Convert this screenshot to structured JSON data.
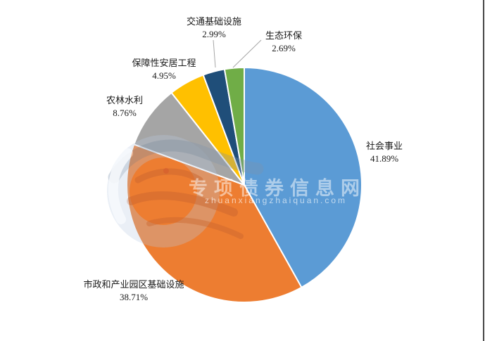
{
  "chart_data": {
    "type": "pie",
    "title": "",
    "legend": "none",
    "start_angle_deg": 0,
    "direction": "clockwise",
    "data_labels": "category name and percent, outside slices",
    "slices": [
      {
        "name": "社会事业",
        "value": 41.89,
        "pct_label": "41.89%",
        "color": "#5B9BD5"
      },
      {
        "name": "市政和产业园区基础设施",
        "value": 38.71,
        "pct_label": "38.71%",
        "color": "#ED7D31"
      },
      {
        "name": "农林水利",
        "value": 8.76,
        "pct_label": "8.76%",
        "color": "#A5A5A5"
      },
      {
        "name": "保障性安居工程",
        "value": 4.95,
        "pct_label": "4.95%",
        "color": "#FFC000"
      },
      {
        "name": "交通基础设施",
        "value": 2.99,
        "pct_label": "2.99%",
        "color": "#1F4E79"
      },
      {
        "name": "生态环保",
        "value": 2.69,
        "pct_label": "2.69%",
        "color": "#70AD47"
      }
    ]
  },
  "watermark": {
    "site_name": "专项债券信息网",
    "site_domain": "zhuanxiangzhaiquan.com"
  }
}
